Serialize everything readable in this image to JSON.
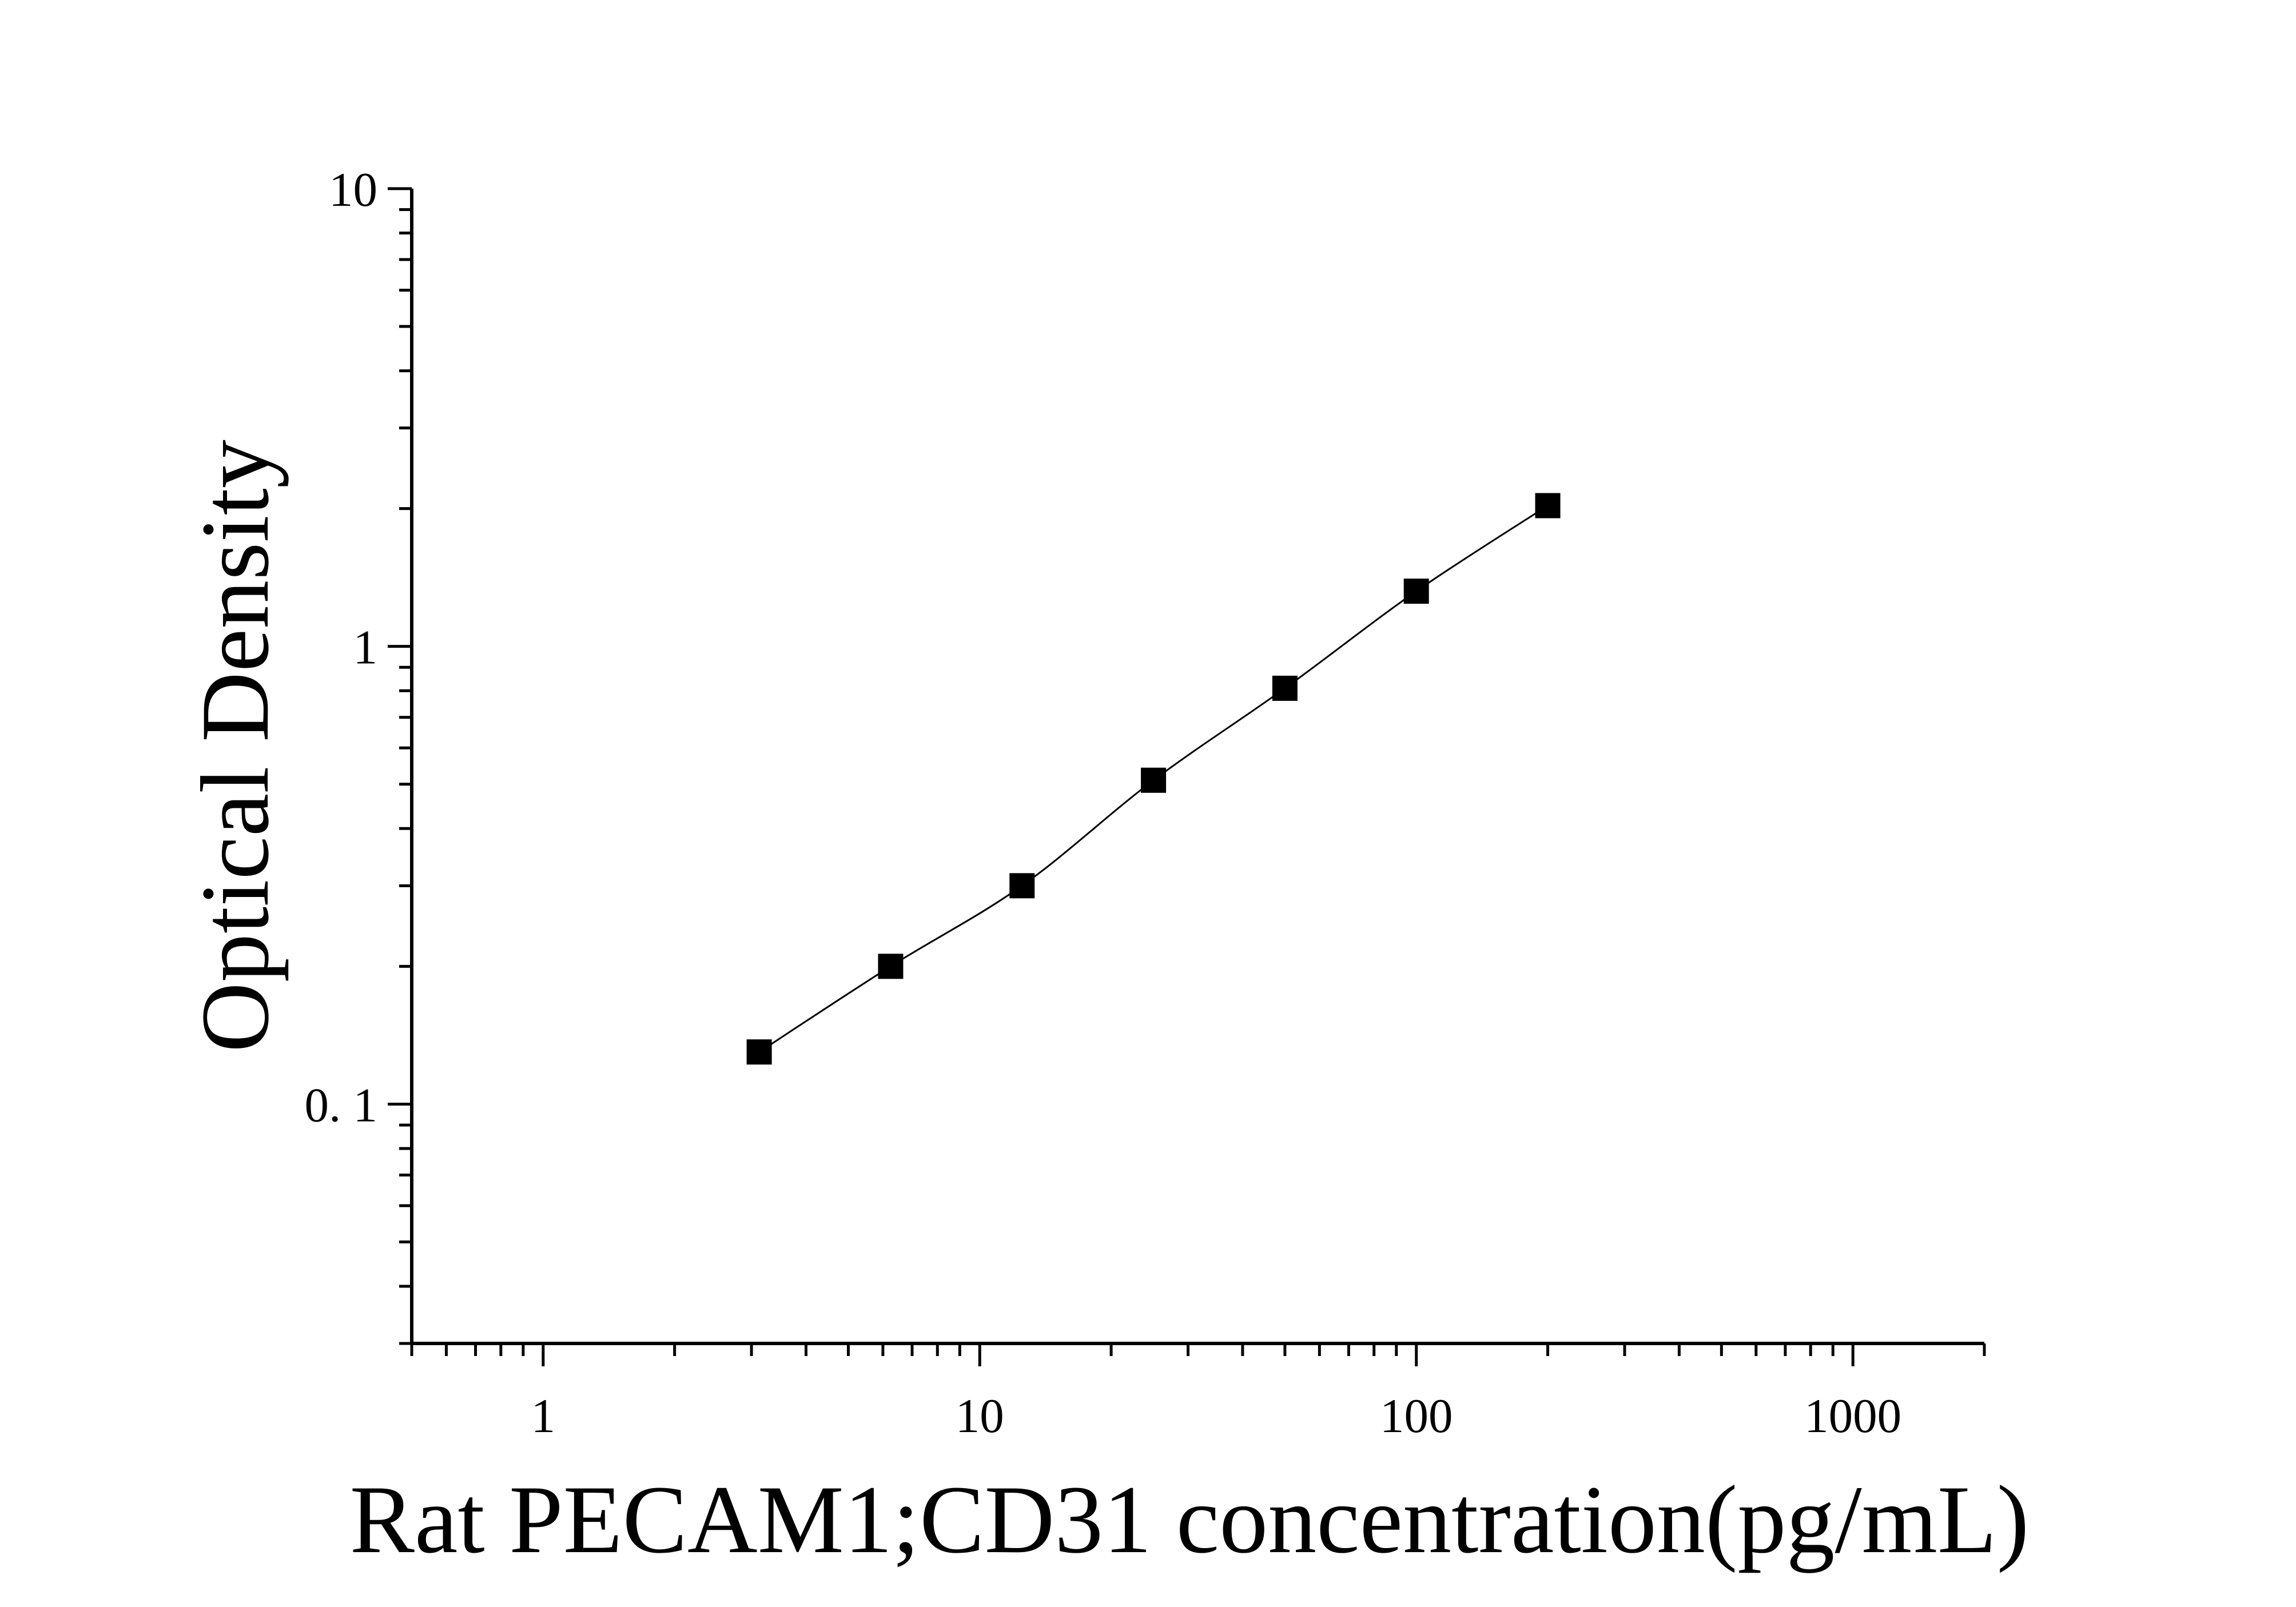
{
  "chart_data": {
    "type": "scatter",
    "title": "",
    "xlabel": "Rat PECAM1;CD31 concentration(pg/mL)",
    "ylabel": "Optical Density",
    "x_scale": "log",
    "y_scale": "log",
    "xlim": [
      0.5,
      2000
    ],
    "ylim": [
      0.03,
      10
    ],
    "x_ticks": [
      {
        "value": 1,
        "label": "1"
      },
      {
        "value": 10,
        "label": "10"
      },
      {
        "value": 100,
        "label": "100"
      },
      {
        "value": 1000,
        "label": "1000"
      }
    ],
    "y_ticks": [
      {
        "value": 0.1,
        "label": "0. 1"
      },
      {
        "value": 1,
        "label": "1"
      },
      {
        "value": 10,
        "label": "10"
      }
    ],
    "grid": false,
    "legend": "none",
    "series": [
      {
        "x": [
          3.125,
          6.25,
          12.5,
          25,
          50,
          100,
          200
        ],
        "y": [
          0.13,
          0.2,
          0.3,
          0.51,
          0.81,
          1.32,
          2.03
        ],
        "marker": "square",
        "color": "#000000",
        "fit_line": true
      }
    ]
  }
}
